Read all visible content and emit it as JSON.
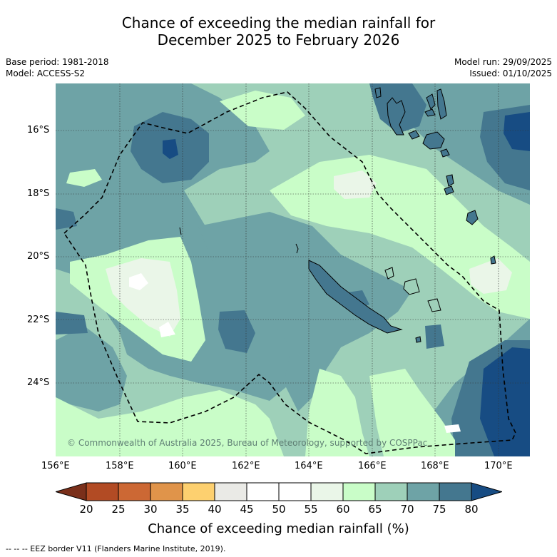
{
  "title": {
    "line1": "Chance of exceeding the median rainfall for",
    "line2": "December 2025 to February 2026"
  },
  "meta": {
    "base_period": "Base period: 1981-2018",
    "model": "Model: ACCESS-S2",
    "model_run": "Model run: 29/09/2025",
    "issued": "Issued: 01/10/2025"
  },
  "map": {
    "lat_ticks": [
      "16°S",
      "18°S",
      "20°S",
      "22°S",
      "24°S"
    ],
    "lon_ticks": [
      "156°E",
      "158°E",
      "160°E",
      "162°E",
      "164°E",
      "166°E",
      "168°E",
      "170°E"
    ],
    "copyright": "© Commonwealth of Australia 2025, Bureau of Meteorology, supported by COSPPac"
  },
  "colorbar": {
    "labels": [
      "20",
      "25",
      "30",
      "35",
      "40",
      "45",
      "50",
      "55",
      "60",
      "65",
      "70",
      "75",
      "80"
    ],
    "colors": [
      "#7a2f1a",
      "#b24b24",
      "#cc6834",
      "#e0944a",
      "#fdd06f",
      "#eaeae6",
      "#ffffff",
      "#ffffff",
      "#eaf6e8",
      "#c9fdc8",
      "#9ed0b9",
      "#6ea3a6",
      "#44778f",
      "#174c83"
    ],
    "title": "Chance of exceeding median rainfall (%)"
  },
  "footnote": "--  --  -- EEZ border V11 (Flanders Marine Institute, 2019)."
}
